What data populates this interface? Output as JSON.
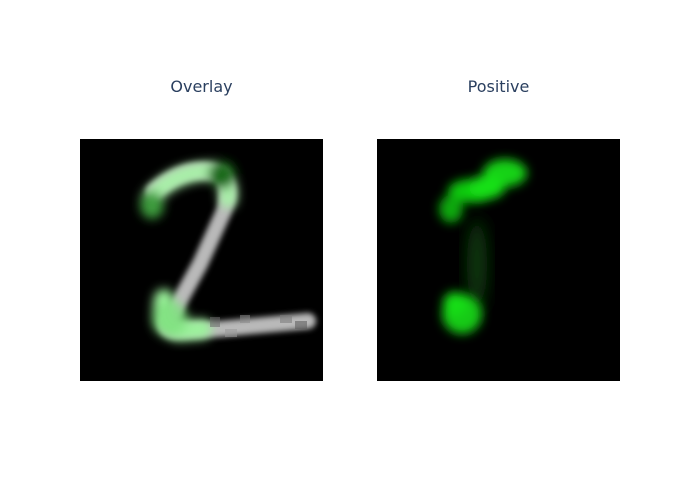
{
  "panels": [
    {
      "title": "Overlay",
      "image": "grayscale handwritten digit two with green saliency overlay"
    },
    {
      "title": "Positive",
      "image": "green positive attribution map on black background"
    }
  ],
  "colors": {
    "background": "#000000",
    "digit_gray": "#b4b4b4",
    "overlay_green": "#9bf59b",
    "positive_green": "#11d911",
    "title_text": "#2a3f5f"
  }
}
